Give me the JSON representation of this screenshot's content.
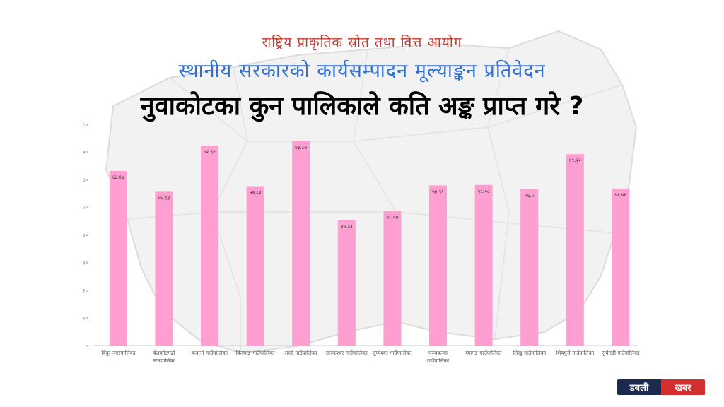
{
  "header": {
    "org": "राष्ट्रिय प्राकृतिक स्रोत तथा वित्त आयोग",
    "report": "स्थानीय सरकारको कार्यसम्पादन मूल्याङ्कन प्रतिवेदन"
  },
  "logo": {
    "part1": "डबली",
    "part2": "खबर"
  },
  "colors": {
    "bar": "#ff9ed0",
    "org": "#c0392b",
    "report": "#2e6fd1"
  },
  "chart_data": {
    "type": "bar",
    "title": "नुवाकोटका कुन पालिकाले कति अङ्क प्राप्त गरे ?",
    "xlabel": "",
    "ylabel": "",
    "ylim": [
      0,
      80
    ],
    "yticks": [
      0,
      10,
      20,
      30,
      40,
      50,
      60,
      70,
      80
    ],
    "ytick_labels": [
      "०",
      "१०",
      "२०",
      "३०",
      "४०",
      "५०",
      "६०",
      "७०",
      "८०"
    ],
    "grid": false,
    "categories": [
      [
        "विदुर नगरपालिका"
      ],
      [
        "बेलकोटगढी",
        "नगरपालिका"
      ],
      [
        "ककनी गाउँपालिका"
      ],
      [
        "किस्पाङ गाउँपालिका"
      ],
      [
        "तादी गाउँपालिका"
      ],
      [
        "तारकेश्वर गाउँपालिका"
      ],
      [
        "दुप्चेश्वर गाउँपालिका"
      ],
      [
        "पञ्चकन्या",
        "गाउँपालिका"
      ],
      [
        "म्यागङ गाउँपालिका"
      ],
      [
        "लिखु गाउँपालिका"
      ],
      [
        "शिवपुरी गाउँपालिका"
      ],
      [
        "सुर्यगढी गाउँपालिका"
      ]
    ],
    "values": [
      63.14,
      55.62,
      72.31,
      57.63,
      73.87,
      45.33,
      48.67,
      57.91,
      58.08,
      56.5,
      69.22,
      56.76
    ],
    "value_labels": [
      "६३.१४",
      "५५.६२",
      "७२.३१",
      "५७.६३",
      "७३.८७",
      "४५.३३",
      "४८.६७",
      "५७.९१",
      "५८.०८",
      "५६.५",
      "६९.२२",
      "५६.७६"
    ]
  }
}
